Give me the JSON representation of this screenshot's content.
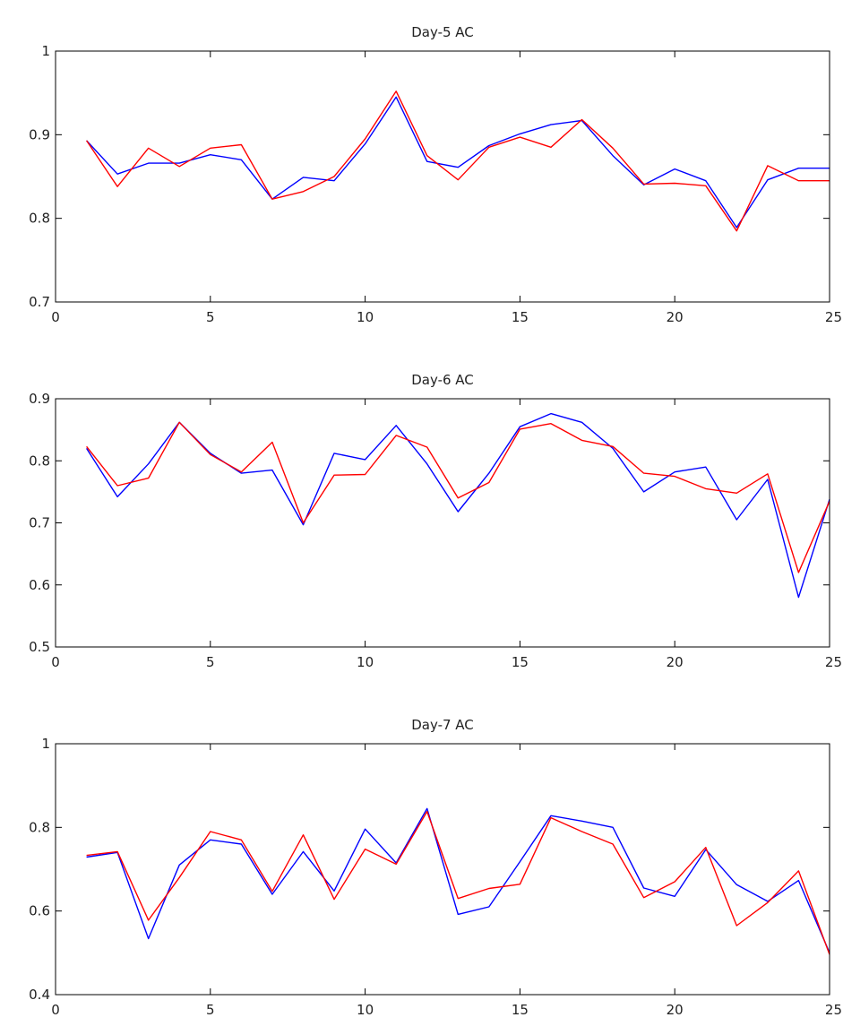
{
  "chart_data": [
    {
      "type": "line",
      "title": "Day-5 AC",
      "xlim": [
        0,
        25
      ],
      "ylim": [
        0.7,
        1
      ],
      "xticks": [
        0,
        5,
        10,
        15,
        20,
        25
      ],
      "yticks": [
        0.7,
        0.8,
        0.9,
        1
      ],
      "ytick_labels": [
        "0.7",
        "0.8",
        "0.9",
        "1"
      ],
      "xtick_labels": [
        "0",
        "5",
        "10",
        "15",
        "20",
        "25"
      ],
      "grid": false,
      "x": [
        1,
        2,
        3,
        4,
        5,
        6,
        7,
        8,
        9,
        10,
        11,
        12,
        13,
        14,
        15,
        16,
        17,
        18,
        19,
        20,
        21,
        22,
        23,
        24,
        25
      ],
      "series": [
        {
          "color": "#0000ff",
          "values": [
            0.893,
            0.853,
            0.866,
            0.866,
            0.876,
            0.87,
            0.823,
            0.849,
            0.845,
            0.889,
            0.945,
            0.868,
            0.861,
            0.887,
            0.901,
            0.912,
            0.917,
            0.875,
            0.84,
            0.859,
            0.845,
            0.789,
            0.846,
            0.86,
            0.86
          ]
        },
        {
          "color": "#ff0000",
          "values": [
            0.893,
            0.838,
            0.884,
            0.862,
            0.884,
            0.888,
            0.823,
            0.832,
            0.85,
            0.895,
            0.952,
            0.875,
            0.846,
            0.885,
            0.897,
            0.885,
            0.918,
            0.884,
            0.841,
            0.842,
            0.839,
            0.785,
            0.863,
            0.845,
            0.845
          ]
        }
      ]
    },
    {
      "type": "line",
      "title": "Day-6 AC",
      "xlim": [
        0,
        25
      ],
      "ylim": [
        0.5,
        0.9
      ],
      "xticks": [
        0,
        5,
        10,
        15,
        20,
        25
      ],
      "yticks": [
        0.5,
        0.6,
        0.7,
        0.8,
        0.9
      ],
      "ytick_labels": [
        "0.5",
        "0.6",
        "0.7",
        "0.8",
        "0.9"
      ],
      "xtick_labels": [
        "0",
        "5",
        "10",
        "15",
        "20",
        "25"
      ],
      "grid": false,
      "x": [
        1,
        2,
        3,
        4,
        5,
        6,
        7,
        8,
        9,
        10,
        11,
        12,
        13,
        14,
        15,
        16,
        17,
        18,
        19,
        20,
        21,
        22,
        23,
        24,
        25
      ],
      "series": [
        {
          "color": "#0000ff",
          "values": [
            0.82,
            0.742,
            0.795,
            0.862,
            0.812,
            0.78,
            0.785,
            0.697,
            0.812,
            0.802,
            0.857,
            0.795,
            0.718,
            0.78,
            0.855,
            0.876,
            0.862,
            0.82,
            0.75,
            0.782,
            0.79,
            0.705,
            0.77,
            0.58,
            0.738
          ]
        },
        {
          "color": "#ff0000",
          "values": [
            0.823,
            0.76,
            0.772,
            0.862,
            0.81,
            0.782,
            0.83,
            0.7,
            0.777,
            0.778,
            0.841,
            0.822,
            0.74,
            0.765,
            0.851,
            0.86,
            0.833,
            0.823,
            0.78,
            0.775,
            0.755,
            0.748,
            0.779,
            0.62,
            0.735
          ]
        }
      ]
    },
    {
      "type": "line",
      "title": "Day-7 AC",
      "xlim": [
        0,
        25
      ],
      "ylim": [
        0.4,
        1
      ],
      "xticks": [
        0,
        5,
        10,
        15,
        20,
        25
      ],
      "yticks": [
        0.4,
        0.6,
        0.8,
        1
      ],
      "ytick_labels": [
        "0.4",
        "0.6",
        "0.8",
        "1"
      ],
      "xtick_labels": [
        "0",
        "5",
        "10",
        "15",
        "20",
        "25"
      ],
      "grid": false,
      "x": [
        1,
        2,
        3,
        4,
        5,
        6,
        7,
        8,
        9,
        10,
        11,
        12,
        13,
        14,
        15,
        16,
        17,
        18,
        19,
        20,
        21,
        22,
        23,
        24,
        25
      ],
      "series": [
        {
          "color": "#0000ff",
          "values": [
            0.729,
            0.74,
            0.534,
            0.71,
            0.77,
            0.76,
            0.64,
            0.742,
            0.648,
            0.796,
            0.715,
            0.845,
            0.592,
            0.61,
            0.718,
            0.828,
            0.815,
            0.8,
            0.655,
            0.635,
            0.747,
            0.663,
            0.623,
            0.673,
            0.5
          ]
        },
        {
          "color": "#ff0000",
          "values": [
            0.733,
            0.742,
            0.578,
            0.68,
            0.79,
            0.77,
            0.647,
            0.782,
            0.628,
            0.748,
            0.712,
            0.838,
            0.63,
            0.654,
            0.664,
            0.823,
            0.79,
            0.76,
            0.632,
            0.67,
            0.752,
            0.565,
            0.62,
            0.696,
            0.496
          ]
        }
      ]
    }
  ]
}
